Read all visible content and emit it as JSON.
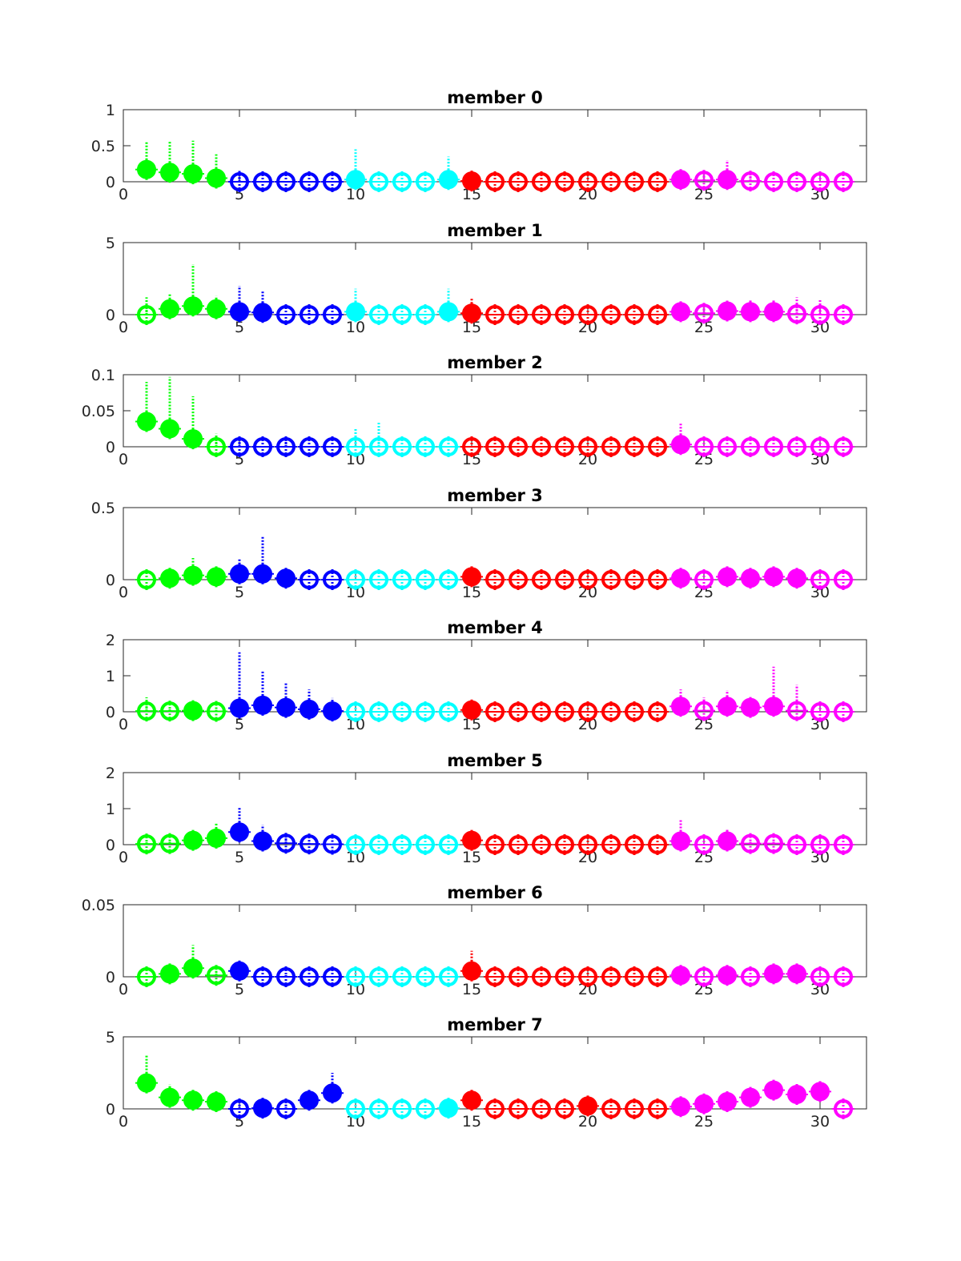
{
  "chart_data": {
    "type": "scatter",
    "x_ticks": [
      0,
      5,
      10,
      15,
      20,
      25,
      30
    ],
    "xlim": [
      0,
      32
    ],
    "groups": [
      {
        "color": "#00ff00",
        "x": [
          1,
          2,
          3,
          4
        ]
      },
      {
        "color": "#0000ff",
        "x": [
          5,
          6,
          7,
          8,
          9
        ]
      },
      {
        "color": "#00ffff",
        "x": [
          10,
          11,
          12,
          13,
          14
        ]
      },
      {
        "color": "#ff0000",
        "x": [
          15,
          16,
          17,
          18,
          19,
          20,
          21,
          22,
          23
        ]
      },
      {
        "color": "#ff00ff",
        "x": [
          24,
          25,
          26,
          27,
          28,
          29,
          30,
          31
        ]
      }
    ],
    "panels": [
      {
        "title": "member 0",
        "ylim": [
          0,
          1
        ],
        "y_ticks": [
          0,
          0.5,
          1
        ],
        "y_tick_labels": [
          "0",
          "0.5",
          "1"
        ],
        "values": [
          0.17,
          0.13,
          0.11,
          0.05,
          0.0,
          0.0,
          0.0,
          0.0,
          0.0,
          0.03,
          0.0,
          0.0,
          0.0,
          0.03,
          0.01,
          0.0,
          0.0,
          0.0,
          0.0,
          0.0,
          0.0,
          0.0,
          0.0,
          0.03,
          0.02,
          0.03,
          0.01,
          0.0,
          0.0,
          0.0,
          0.0
        ],
        "upper": [
          0.55,
          0.57,
          0.57,
          0.38,
          0.15,
          0.0,
          0.0,
          0.0,
          0.0,
          0.45,
          0.0,
          0.0,
          0.0,
          0.35,
          0.08,
          0.0,
          0.0,
          0.0,
          0.0,
          0.0,
          0.0,
          0.0,
          0.0,
          0.15,
          0.1,
          0.3,
          0.08,
          0.0,
          0.0,
          0.0,
          0.0
        ],
        "filled": [
          true,
          true,
          true,
          true,
          false,
          false,
          false,
          false,
          false,
          true,
          false,
          false,
          false,
          true,
          true,
          false,
          false,
          false,
          false,
          false,
          false,
          false,
          false,
          true,
          false,
          true,
          false,
          false,
          false,
          false,
          false
        ]
      },
      {
        "title": "member 1",
        "ylim": [
          0,
          5
        ],
        "y_ticks": [
          0,
          5
        ],
        "y_tick_labels": [
          "0",
          "5"
        ],
        "values": [
          0.0,
          0.4,
          0.6,
          0.4,
          0.2,
          0.15,
          0.0,
          0.0,
          0.0,
          0.2,
          0.0,
          0.0,
          0.0,
          0.2,
          0.1,
          0.0,
          0.0,
          0.0,
          0.0,
          0.0,
          0.0,
          0.0,
          0.0,
          0.2,
          0.1,
          0.25,
          0.2,
          0.2,
          0.05,
          0.0,
          0.0
        ],
        "upper": [
          1.2,
          1.5,
          3.5,
          1.3,
          2.0,
          1.6,
          0.0,
          0.5,
          0.0,
          1.8,
          0.0,
          0.0,
          0.0,
          1.8,
          1.2,
          0.0,
          0.0,
          0.0,
          0.0,
          0.0,
          0.0,
          0.0,
          0.0,
          0.5,
          0.5,
          0.8,
          1.0,
          1.0,
          1.2,
          1.0,
          0.0
        ],
        "filled": [
          false,
          true,
          true,
          true,
          true,
          true,
          false,
          false,
          false,
          true,
          false,
          false,
          false,
          true,
          true,
          false,
          false,
          false,
          false,
          false,
          false,
          false,
          false,
          true,
          false,
          true,
          true,
          true,
          false,
          false,
          false
        ]
      },
      {
        "title": "member 2",
        "ylim": [
          0,
          0.1
        ],
        "y_ticks": [
          0,
          0.05,
          0.1
        ],
        "y_tick_labels": [
          "0",
          "0.05",
          "0.1"
        ],
        "values": [
          0.035,
          0.025,
          0.011,
          0.0,
          0.0,
          0.0,
          0.0,
          0.0,
          0.0,
          0.0,
          0.0,
          0.0,
          0.0,
          0.0,
          0.0,
          0.0,
          0.0,
          0.0,
          0.0,
          0.0,
          0.0,
          0.0,
          0.0,
          0.003,
          0.0,
          0.0,
          0.0,
          0.0,
          0.0,
          0.0,
          0.0
        ],
        "upper": [
          0.09,
          0.097,
          0.07,
          0.018,
          0.012,
          0.0,
          0.012,
          0.0,
          0.0,
          0.025,
          0.035,
          0.0,
          0.0,
          0.0,
          0.0,
          0.0,
          0.0,
          0.0,
          0.0,
          0.0,
          0.0,
          0.0,
          0.0,
          0.033,
          0.0,
          0.0,
          0.0,
          0.0,
          0.0,
          0.0,
          0.0
        ],
        "filled": [
          true,
          true,
          true,
          false,
          false,
          false,
          false,
          false,
          false,
          false,
          false,
          false,
          false,
          false,
          false,
          false,
          false,
          false,
          false,
          false,
          false,
          false,
          false,
          true,
          false,
          false,
          false,
          false,
          false,
          false,
          false
        ]
      },
      {
        "title": "member 3",
        "ylim": [
          0,
          0.5
        ],
        "y_ticks": [
          0,
          0.5
        ],
        "y_tick_labels": [
          "0",
          "0.5"
        ],
        "values": [
          0.0,
          0.01,
          0.03,
          0.02,
          0.04,
          0.04,
          0.01,
          0.0,
          0.0,
          0.0,
          0.0,
          0.0,
          0.0,
          0.0,
          0.02,
          0.0,
          0.0,
          0.0,
          0.0,
          0.0,
          0.0,
          0.0,
          0.0,
          0.01,
          0.0,
          0.02,
          0.01,
          0.02,
          0.01,
          0.0,
          0.0
        ],
        "upper": [
          0.0,
          0.05,
          0.15,
          0.06,
          0.15,
          0.3,
          0.05,
          0.0,
          0.0,
          0.0,
          0.0,
          0.0,
          0.0,
          0.0,
          0.06,
          0.0,
          0.0,
          0.0,
          0.0,
          0.0,
          0.0,
          0.0,
          0.0,
          0.04,
          0.0,
          0.05,
          0.04,
          0.05,
          0.04,
          0.0,
          0.0
        ],
        "filled": [
          false,
          true,
          true,
          true,
          true,
          true,
          true,
          false,
          false,
          false,
          false,
          false,
          false,
          false,
          true,
          false,
          false,
          false,
          false,
          false,
          false,
          false,
          false,
          true,
          false,
          true,
          true,
          true,
          true,
          false,
          false
        ]
      },
      {
        "title": "member 4",
        "ylim": [
          0,
          2
        ],
        "y_ticks": [
          0,
          1,
          2
        ],
        "y_tick_labels": [
          "0",
          "1",
          "2"
        ],
        "values": [
          0.02,
          0.02,
          0.03,
          0.01,
          0.1,
          0.18,
          0.12,
          0.07,
          0.02,
          0.0,
          0.0,
          0.0,
          0.0,
          0.0,
          0.05,
          0.0,
          0.0,
          0.0,
          0.0,
          0.0,
          0.0,
          0.0,
          0.0,
          0.15,
          0.03,
          0.15,
          0.12,
          0.15,
          0.03,
          0.0,
          0.0
        ],
        "upper": [
          0.4,
          0.1,
          0.1,
          0.05,
          1.65,
          1.12,
          0.82,
          0.62,
          0.38,
          0.0,
          0.0,
          0.0,
          0.0,
          0.0,
          0.15,
          0.0,
          0.0,
          0.0,
          0.0,
          0.0,
          0.0,
          0.0,
          0.0,
          0.62,
          0.4,
          0.6,
          0.35,
          1.25,
          0.75,
          0.0,
          0.0
        ],
        "filled": [
          false,
          false,
          true,
          false,
          true,
          true,
          true,
          true,
          true,
          false,
          false,
          false,
          false,
          false,
          true,
          false,
          false,
          false,
          false,
          false,
          false,
          false,
          false,
          true,
          false,
          true,
          true,
          true,
          false,
          false,
          false
        ]
      },
      {
        "title": "member 5",
        "ylim": [
          0,
          2
        ],
        "y_ticks": [
          0,
          1,
          2
        ],
        "y_tick_labels": [
          "0",
          "1",
          "2"
        ],
        "values": [
          0.02,
          0.03,
          0.12,
          0.18,
          0.35,
          0.1,
          0.04,
          0.02,
          0.01,
          0.0,
          0.0,
          0.0,
          0.0,
          0.0,
          0.12,
          0.0,
          0.0,
          0.0,
          0.0,
          0.0,
          0.0,
          0.0,
          0.0,
          0.1,
          0.0,
          0.1,
          0.03,
          0.03,
          0.0,
          0.0,
          0.0
        ],
        "upper": [
          0.1,
          0.1,
          0.35,
          0.6,
          1.05,
          0.55,
          0.3,
          0.05,
          0.0,
          0.0,
          0.0,
          0.0,
          0.0,
          0.0,
          0.3,
          0.0,
          0.0,
          0.0,
          0.0,
          0.0,
          0.0,
          0.0,
          0.0,
          0.7,
          0.0,
          0.45,
          0.1,
          0.1,
          0.0,
          0.0,
          0.0
        ],
        "filled": [
          false,
          false,
          true,
          true,
          true,
          true,
          false,
          false,
          false,
          false,
          false,
          false,
          false,
          false,
          true,
          false,
          false,
          false,
          false,
          false,
          false,
          false,
          false,
          true,
          false,
          true,
          false,
          false,
          false,
          false,
          false
        ]
      },
      {
        "title": "member 6",
        "ylim": [
          0,
          0.05
        ],
        "y_ticks": [
          0,
          0.05
        ],
        "y_tick_labels": [
          "0",
          "0.05"
        ],
        "values": [
          0.0,
          0.002,
          0.006,
          0.001,
          0.004,
          0.0,
          0.0,
          0.0,
          0.0,
          0.0,
          0.0,
          0.0,
          0.0,
          0.0,
          0.004,
          0.0,
          0.0,
          0.0,
          0.0,
          0.0,
          0.0,
          0.0,
          0.0,
          0.001,
          0.0,
          0.001,
          0.0,
          0.002,
          0.002,
          0.0,
          0.0
        ],
        "upper": [
          0.0,
          0.007,
          0.022,
          0.004,
          0.011,
          0.0,
          0.002,
          0.0,
          0.0,
          0.0,
          0.0,
          0.0,
          0.0,
          0.0,
          0.018,
          0.0,
          0.0,
          0.0,
          0.0,
          0.0,
          0.0,
          0.0,
          0.0,
          0.003,
          0.0,
          0.003,
          0.0,
          0.006,
          0.006,
          0.0,
          0.0
        ],
        "filled": [
          false,
          true,
          true,
          false,
          true,
          false,
          false,
          false,
          false,
          false,
          false,
          false,
          false,
          false,
          true,
          false,
          false,
          false,
          false,
          false,
          false,
          false,
          false,
          true,
          false,
          true,
          false,
          true,
          true,
          false,
          false
        ]
      },
      {
        "title": "member 7",
        "ylim": [
          0,
          5
        ],
        "y_ticks": [
          0,
          5
        ],
        "y_tick_labels": [
          "0",
          "5"
        ],
        "values": [
          1.8,
          0.8,
          0.6,
          0.5,
          0.0,
          0.05,
          0.0,
          0.6,
          1.1,
          0.0,
          0.0,
          0.0,
          0.0,
          0.05,
          0.6,
          0.0,
          0.0,
          0.0,
          0.0,
          0.2,
          0.0,
          0.0,
          0.0,
          0.15,
          0.35,
          0.5,
          0.8,
          1.3,
          1.0,
          1.2,
          0.0
        ],
        "upper": [
          3.7,
          1.7,
          1.0,
          0.7,
          0.3,
          0.4,
          0.3,
          1.0,
          2.5,
          0.0,
          0.0,
          0.0,
          0.0,
          0.4,
          1.0,
          0.0,
          0.0,
          0.0,
          0.0,
          0.5,
          0.0,
          0.0,
          0.0,
          0.4,
          0.6,
          0.8,
          1.1,
          1.6,
          1.3,
          1.5,
          0.0
        ],
        "filled": [
          true,
          true,
          true,
          true,
          false,
          true,
          false,
          true,
          true,
          false,
          false,
          false,
          false,
          true,
          true,
          false,
          false,
          false,
          false,
          true,
          false,
          false,
          false,
          true,
          true,
          true,
          true,
          true,
          true,
          true,
          false
        ]
      }
    ]
  }
}
